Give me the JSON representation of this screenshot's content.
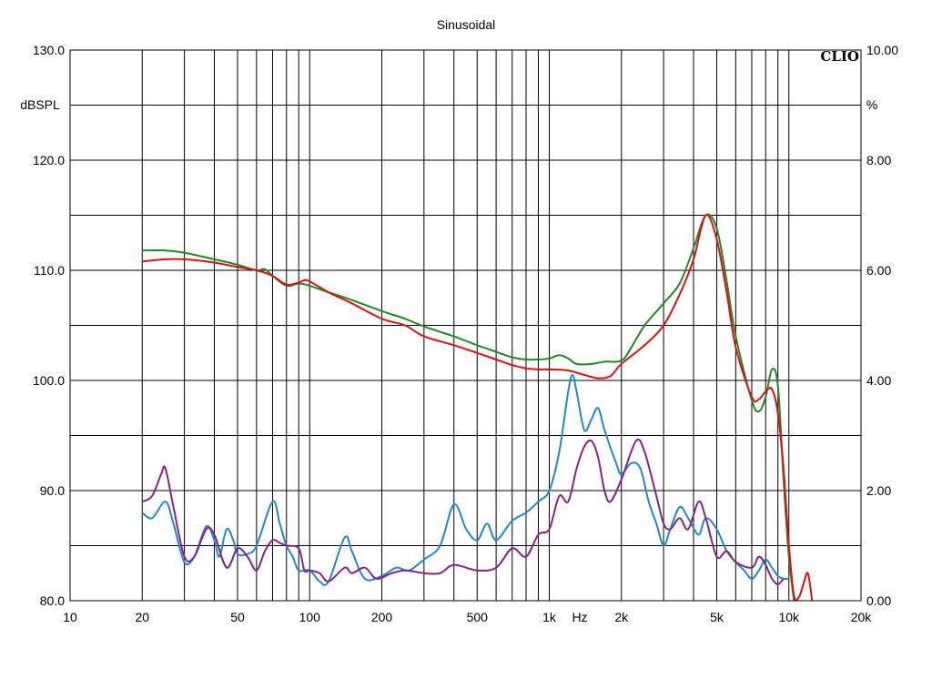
{
  "chart_data": {
    "type": "line",
    "title": "Sinusoidal",
    "brand": "CLIO",
    "x_scale": "log",
    "xlim": [
      10,
      20000
    ],
    "ylim_left": [
      80,
      130
    ],
    "ylim_right": [
      0,
      10
    ],
    "y_left_unit": "dBSPL",
    "y_right_unit": "%",
    "x_unit": "Hz",
    "grid": true,
    "x_tick_labels": [
      {
        "f": 10,
        "label": "10"
      },
      {
        "f": 20,
        "label": "20"
      },
      {
        "f": 50,
        "label": "50"
      },
      {
        "f": 100,
        "label": "100"
      },
      {
        "f": 200,
        "label": "200"
      },
      {
        "f": 500,
        "label": "500"
      },
      {
        "f": 1000,
        "label": "1k"
      },
      {
        "f": 2000,
        "label": "2k"
      },
      {
        "f": 5000,
        "label": "5k"
      },
      {
        "f": 10000,
        "label": "10k"
      },
      {
        "f": 20000,
        "label": "20k"
      }
    ],
    "y_left_tick_labels": [
      {
        "v": 130,
        "label": "130.0"
      },
      {
        "v": 120,
        "label": "120.0"
      },
      {
        "v": 110,
        "label": "110.0"
      },
      {
        "v": 100,
        "label": "100.0"
      },
      {
        "v": 90,
        "label": "90.0"
      },
      {
        "v": 80,
        "label": "80.0"
      }
    ],
    "y_right_tick_labels": [
      {
        "v": 130,
        "label": "10.00"
      },
      {
        "v": 120,
        "label": "8.00"
      },
      {
        "v": 110,
        "label": "6.00"
      },
      {
        "v": 100,
        "label": "4.00"
      },
      {
        "v": 90,
        "label": "2.00"
      },
      {
        "v": 80,
        "label": "0.00"
      }
    ],
    "series": [
      {
        "color": "#228822",
        "axis": "left",
        "points": [
          [
            20,
            111.8
          ],
          [
            25,
            111.8
          ],
          [
            30,
            111.6
          ],
          [
            40,
            111.0
          ],
          [
            50,
            110.5
          ],
          [
            60,
            110.0
          ],
          [
            65,
            110.1
          ],
          [
            70,
            109.5
          ],
          [
            80,
            108.6
          ],
          [
            90,
            108.8
          ],
          [
            100,
            108.6
          ],
          [
            120,
            108.0
          ],
          [
            150,
            107.3
          ],
          [
            200,
            106.3
          ],
          [
            250,
            105.6
          ],
          [
            300,
            104.9
          ],
          [
            400,
            104.0
          ],
          [
            500,
            103.2
          ],
          [
            600,
            102.6
          ],
          [
            700,
            102.1
          ],
          [
            800,
            101.9
          ],
          [
            900,
            101.9
          ],
          [
            1000,
            102.0
          ],
          [
            1100,
            102.3
          ],
          [
            1200,
            102.0
          ],
          [
            1300,
            101.5
          ],
          [
            1500,
            101.5
          ],
          [
            1700,
            101.7
          ],
          [
            2000,
            101.8
          ],
          [
            2200,
            103.0
          ],
          [
            2500,
            105.0
          ],
          [
            3000,
            107.0
          ],
          [
            3500,
            108.8
          ],
          [
            4000,
            112.0
          ],
          [
            4500,
            115.0
          ],
          [
            5000,
            113.8
          ],
          [
            5500,
            109.0
          ],
          [
            6000,
            104.0
          ],
          [
            7000,
            98.2
          ],
          [
            7500,
            97.2
          ],
          [
            8000,
            98.5
          ],
          [
            8500,
            101.0
          ],
          [
            9000,
            99.5
          ],
          [
            9500,
            91.0
          ],
          [
            10000,
            84.0
          ],
          [
            10500,
            80.0
          ]
        ]
      },
      {
        "color": "#dd1111",
        "axis": "left",
        "points": [
          [
            20,
            110.8
          ],
          [
            25,
            111.0
          ],
          [
            30,
            111.0
          ],
          [
            40,
            110.7
          ],
          [
            50,
            110.3
          ],
          [
            60,
            110.0
          ],
          [
            70,
            109.5
          ],
          [
            80,
            108.7
          ],
          [
            90,
            108.9
          ],
          [
            95,
            109.1
          ],
          [
            100,
            109.0
          ],
          [
            120,
            108.0
          ],
          [
            150,
            107.0
          ],
          [
            200,
            105.6
          ],
          [
            250,
            105.0
          ],
          [
            300,
            104.0
          ],
          [
            400,
            103.2
          ],
          [
            500,
            102.5
          ],
          [
            600,
            101.9
          ],
          [
            700,
            101.4
          ],
          [
            800,
            101.1
          ],
          [
            900,
            101.0
          ],
          [
            1000,
            101.0
          ],
          [
            1200,
            100.9
          ],
          [
            1400,
            100.5
          ],
          [
            1600,
            100.2
          ],
          [
            1800,
            100.4
          ],
          [
            2000,
            101.5
          ],
          [
            2500,
            103.2
          ],
          [
            3000,
            105.0
          ],
          [
            3500,
            107.8
          ],
          [
            4000,
            111.0
          ],
          [
            4500,
            115.0
          ],
          [
            5000,
            112.8
          ],
          [
            5500,
            108.0
          ],
          [
            6000,
            103.0
          ],
          [
            7000,
            98.5
          ],
          [
            7500,
            98.3
          ],
          [
            8000,
            99.0
          ],
          [
            8500,
            99.2
          ],
          [
            9000,
            97.0
          ],
          [
            9500,
            92.0
          ],
          [
            10000,
            85.0
          ],
          [
            10500,
            80.5
          ],
          [
            11000,
            80.3
          ],
          [
            11500,
            81.5
          ],
          [
            12000,
            82.5
          ],
          [
            12500,
            80.0
          ]
        ]
      },
      {
        "color": "#2288cc",
        "axis": "right",
        "points": [
          [
            20,
            1.6
          ],
          [
            22,
            1.5
          ],
          [
            25,
            1.8
          ],
          [
            27,
            1.4
          ],
          [
            30,
            0.7
          ],
          [
            33,
            0.8
          ],
          [
            37,
            1.35
          ],
          [
            40,
            1.1
          ],
          [
            42,
            0.8
          ],
          [
            45,
            1.3
          ],
          [
            48,
            1.1
          ],
          [
            50,
            0.85
          ],
          [
            55,
            0.85
          ],
          [
            60,
            1.0
          ],
          [
            70,
            1.8
          ],
          [
            75,
            1.4
          ],
          [
            80,
            1.0
          ],
          [
            85,
            0.8
          ],
          [
            90,
            0.55
          ],
          [
            100,
            0.55
          ],
          [
            110,
            0.35
          ],
          [
            120,
            0.35
          ],
          [
            140,
            1.15
          ],
          [
            150,
            0.9
          ],
          [
            170,
            0.4
          ],
          [
            200,
            0.45
          ],
          [
            230,
            0.6
          ],
          [
            260,
            0.55
          ],
          [
            300,
            0.75
          ],
          [
            350,
            1.0
          ],
          [
            400,
            1.75
          ],
          [
            450,
            1.3
          ],
          [
            500,
            1.1
          ],
          [
            550,
            1.4
          ],
          [
            600,
            1.1
          ],
          [
            700,
            1.45
          ],
          [
            800,
            1.6
          ],
          [
            900,
            1.8
          ],
          [
            1000,
            2.0
          ],
          [
            1100,
            2.7
          ],
          [
            1200,
            3.8
          ],
          [
            1250,
            4.1
          ],
          [
            1300,
            3.8
          ],
          [
            1400,
            3.1
          ],
          [
            1500,
            3.3
          ],
          [
            1600,
            3.5
          ],
          [
            1700,
            3.1
          ],
          [
            1900,
            2.5
          ],
          [
            2000,
            2.3
          ],
          [
            2200,
            2.5
          ],
          [
            2400,
            2.4
          ],
          [
            2600,
            1.8
          ],
          [
            2800,
            1.4
          ],
          [
            3000,
            1.0
          ],
          [
            3200,
            1.3
          ],
          [
            3500,
            1.7
          ],
          [
            3800,
            1.5
          ],
          [
            4200,
            1.2
          ],
          [
            4500,
            1.5
          ],
          [
            5000,
            1.3
          ],
          [
            5500,
            0.9
          ],
          [
            6000,
            0.7
          ],
          [
            6500,
            0.55
          ],
          [
            7000,
            0.4
          ],
          [
            7500,
            0.55
          ],
          [
            8000,
            0.75
          ],
          [
            8500,
            0.6
          ],
          [
            9000,
            0.45
          ],
          [
            9500,
            0.4
          ],
          [
            10000,
            0.4
          ]
        ]
      },
      {
        "color": "#882288",
        "axis": "right",
        "points": [
          [
            20,
            1.8
          ],
          [
            22,
            1.9
          ],
          [
            24,
            2.3
          ],
          [
            25,
            2.4
          ],
          [
            27,
            1.7
          ],
          [
            30,
            0.8
          ],
          [
            33,
            0.8
          ],
          [
            37,
            1.3
          ],
          [
            40,
            1.2
          ],
          [
            45,
            0.6
          ],
          [
            50,
            0.95
          ],
          [
            55,
            0.8
          ],
          [
            60,
            0.55
          ],
          [
            65,
            0.9
          ],
          [
            70,
            1.1
          ],
          [
            75,
            1.05
          ],
          [
            80,
            1.0
          ],
          [
            90,
            0.95
          ],
          [
            95,
            0.55
          ],
          [
            100,
            0.55
          ],
          [
            110,
            0.5
          ],
          [
            120,
            0.35
          ],
          [
            140,
            0.6
          ],
          [
            150,
            0.5
          ],
          [
            170,
            0.6
          ],
          [
            190,
            0.4
          ],
          [
            220,
            0.5
          ],
          [
            250,
            0.55
          ],
          [
            300,
            0.5
          ],
          [
            350,
            0.5
          ],
          [
            400,
            0.65
          ],
          [
            500,
            0.55
          ],
          [
            600,
            0.6
          ],
          [
            700,
            0.95
          ],
          [
            800,
            0.8
          ],
          [
            900,
            1.2
          ],
          [
            1000,
            1.3
          ],
          [
            1100,
            1.9
          ],
          [
            1200,
            1.8
          ],
          [
            1300,
            2.4
          ],
          [
            1400,
            2.8
          ],
          [
            1500,
            2.9
          ],
          [
            1600,
            2.6
          ],
          [
            1700,
            2.0
          ],
          [
            1800,
            1.8
          ],
          [
            2000,
            2.2
          ],
          [
            2300,
            2.9
          ],
          [
            2500,
            2.7
          ],
          [
            2800,
            1.9
          ],
          [
            3000,
            1.4
          ],
          [
            3200,
            1.3
          ],
          [
            3500,
            1.5
          ],
          [
            3800,
            1.3
          ],
          [
            4200,
            1.8
          ],
          [
            4500,
            1.5
          ],
          [
            5000,
            0.8
          ],
          [
            5500,
            0.9
          ],
          [
            6000,
            0.7
          ],
          [
            7000,
            0.6
          ],
          [
            7500,
            0.8
          ],
          [
            8000,
            0.65
          ],
          [
            8500,
            0.4
          ],
          [
            9000,
            0.3
          ],
          [
            9500,
            0.4
          ]
        ]
      }
    ]
  }
}
